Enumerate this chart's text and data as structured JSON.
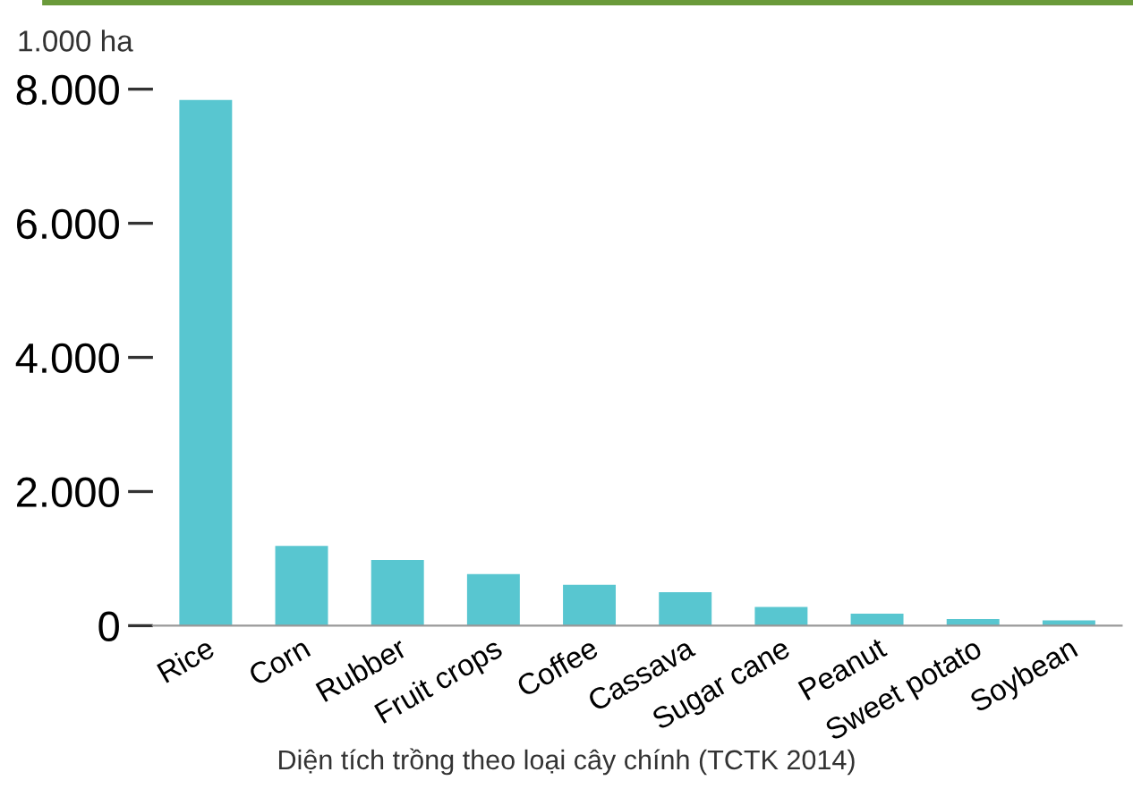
{
  "chart_data": {
    "type": "bar",
    "ylabel": "1.000 ha",
    "categories": [
      "Rice",
      "Corn",
      "Rubber",
      "Fruit crops",
      "Coffee",
      "Cassava",
      "Sugar cane",
      "Peanut",
      "Sweet potato",
      "Soybean"
    ],
    "values": [
      7840,
      1190,
      980,
      770,
      610,
      500,
      280,
      180,
      100,
      80
    ],
    "color": "#58c6d0",
    "ylim": [
      0,
      8000
    ],
    "yticks": [
      {
        "value": 0,
        "label": "0"
      },
      {
        "value": 2000,
        "label": "2.000"
      },
      {
        "value": 4000,
        "label": "4.000"
      },
      {
        "value": 6000,
        "label": "6.000"
      },
      {
        "value": 8000,
        "label": "8.000"
      }
    ],
    "grid": false,
    "annotations": [
      "Diện tích trồng theo loại cây chính (TCTK 2014)"
    ]
  }
}
